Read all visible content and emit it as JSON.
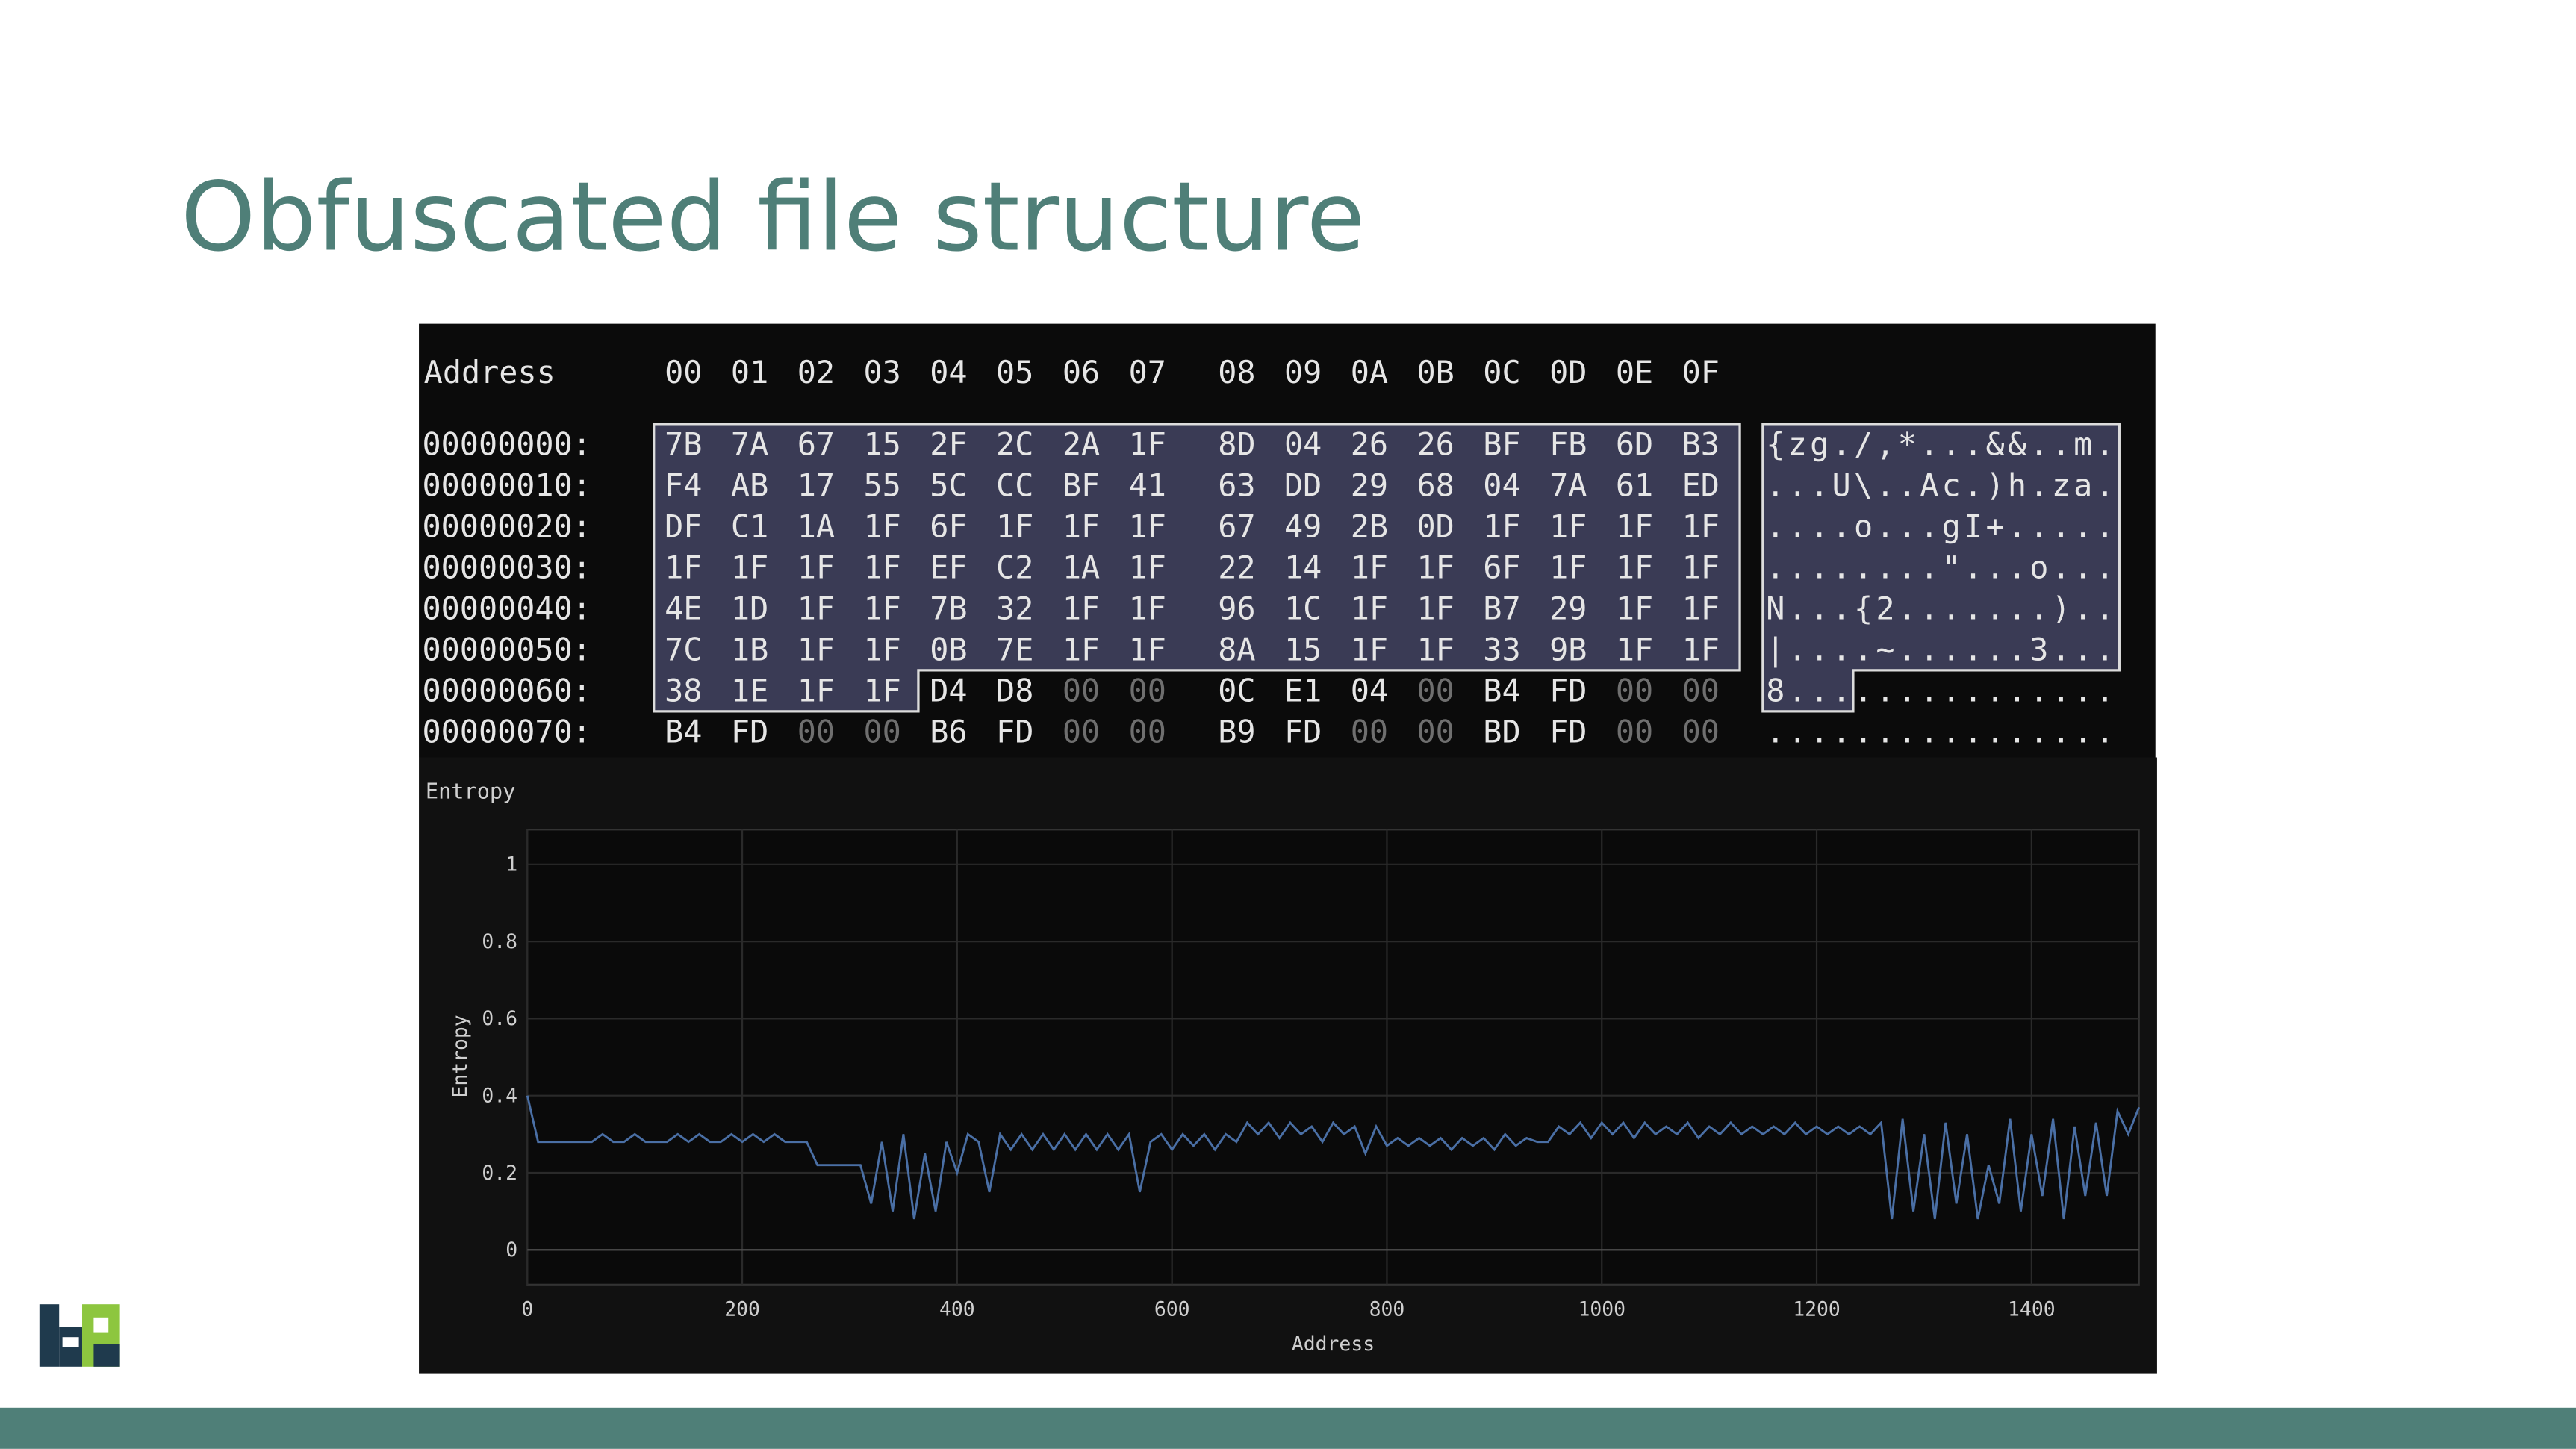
{
  "title": "Obfuscated file structure",
  "hex_view": {
    "header_label": "Address",
    "columns": [
      "00",
      "01",
      "02",
      "03",
      "04",
      "05",
      "06",
      "07",
      "08",
      "09",
      "0A",
      "0B",
      "0C",
      "0D",
      "0E",
      "0F"
    ],
    "rows": [
      {
        "address": "00000000:",
        "bytes": [
          "7B",
          "7A",
          "67",
          "15",
          "2F",
          "2C",
          "2A",
          "1F",
          "8D",
          "04",
          "26",
          "26",
          "BF",
          "FB",
          "6D",
          "B3"
        ],
        "ascii": "{zg./,*...&&..m."
      },
      {
        "address": "00000010:",
        "bytes": [
          "F4",
          "AB",
          "17",
          "55",
          "5C",
          "CC",
          "BF",
          "41",
          "63",
          "DD",
          "29",
          "68",
          "04",
          "7A",
          "61",
          "ED"
        ],
        "ascii": "...U\\..Ac.)h.za."
      },
      {
        "address": "00000020:",
        "bytes": [
          "DF",
          "C1",
          "1A",
          "1F",
          "6F",
          "1F",
          "1F",
          "1F",
          "67",
          "49",
          "2B",
          "0D",
          "1F",
          "1F",
          "1F",
          "1F"
        ],
        "ascii": "....o...gI+....."
      },
      {
        "address": "00000030:",
        "bytes": [
          "1F",
          "1F",
          "1F",
          "1F",
          "EF",
          "C2",
          "1A",
          "1F",
          "22",
          "14",
          "1F",
          "1F",
          "6F",
          "1F",
          "1F",
          "1F"
        ],
        "ascii": "........\"...o..."
      },
      {
        "address": "00000040:",
        "bytes": [
          "4E",
          "1D",
          "1F",
          "1F",
          "7B",
          "32",
          "1F",
          "1F",
          "96",
          "1C",
          "1F",
          "1F",
          "B7",
          "29",
          "1F",
          "1F"
        ],
        "ascii": "N...{2.......).."
      },
      {
        "address": "00000050:",
        "bytes": [
          "7C",
          "1B",
          "1F",
          "1F",
          "0B",
          "7E",
          "1F",
          "1F",
          "8A",
          "15",
          "1F",
          "1F",
          "33",
          "9B",
          "1F",
          "1F"
        ],
        "ascii": "|....~......3..."
      },
      {
        "address": "00000060:",
        "bytes": [
          "38",
          "1E",
          "1F",
          "1F",
          "D4",
          "D8",
          "00",
          "00",
          "0C",
          "E1",
          "04",
          "00",
          "B4",
          "FD",
          "00",
          "00"
        ],
        "ascii": "8..............."
      },
      {
        "address": "00000070:",
        "bytes": [
          "B4",
          "FD",
          "00",
          "00",
          "B6",
          "FD",
          "00",
          "00",
          "B9",
          "FD",
          "00",
          "00",
          "BD",
          "FD",
          "00",
          "00"
        ],
        "ascii": "................"
      }
    ]
  },
  "chart_data": {
    "type": "line",
    "title": "Entropy",
    "x_label": "Address",
    "y_label": "Entropy",
    "color": "#4a6fa5",
    "grid": true,
    "xlim": [
      0,
      1500
    ],
    "ylim": [
      -0.09,
      1.09
    ],
    "xticks": [
      0,
      200,
      400,
      600,
      800,
      1000,
      1200,
      1400
    ],
    "yticks": [
      0,
      0.2,
      0.4,
      0.6,
      0.8,
      1
    ],
    "x": [
      0,
      10,
      20,
      30,
      40,
      50,
      60,
      70,
      80,
      90,
      100,
      110,
      120,
      130,
      140,
      150,
      160,
      170,
      180,
      190,
      200,
      210,
      220,
      230,
      240,
      250,
      260,
      270,
      280,
      290,
      300,
      310,
      320,
      330,
      340,
      350,
      360,
      370,
      380,
      390,
      400,
      410,
      420,
      430,
      440,
      450,
      460,
      470,
      480,
      490,
      500,
      510,
      520,
      530,
      540,
      550,
      560,
      570,
      580,
      590,
      600,
      610,
      620,
      630,
      640,
      650,
      660,
      670,
      680,
      690,
      700,
      710,
      720,
      730,
      740,
      750,
      760,
      770,
      780,
      790,
      800,
      810,
      820,
      830,
      840,
      850,
      860,
      870,
      880,
      890,
      900,
      910,
      920,
      930,
      940,
      950,
      960,
      970,
      980,
      990,
      1000,
      1010,
      1020,
      1030,
      1040,
      1050,
      1060,
      1070,
      1080,
      1090,
      1100,
      1110,
      1120,
      1130,
      1140,
      1150,
      1160,
      1170,
      1180,
      1190,
      1200,
      1210,
      1220,
      1230,
      1240,
      1250,
      1260,
      1270,
      1280,
      1290,
      1300,
      1310,
      1320,
      1330,
      1340,
      1350,
      1360,
      1370,
      1380,
      1390,
      1400,
      1410,
      1420,
      1430,
      1440,
      1450,
      1460,
      1470,
      1480,
      1490,
      1500
    ],
    "values": [
      0.4,
      0.28,
      0.28,
      0.28,
      0.28,
      0.28,
      0.28,
      0.3,
      0.28,
      0.28,
      0.3,
      0.28,
      0.28,
      0.28,
      0.3,
      0.28,
      0.3,
      0.28,
      0.28,
      0.3,
      0.28,
      0.3,
      0.28,
      0.3,
      0.28,
      0.28,
      0.28,
      0.22,
      0.22,
      0.22,
      0.22,
      0.22,
      0.12,
      0.28,
      0.1,
      0.3,
      0.08,
      0.25,
      0.1,
      0.28,
      0.2,
      0.3,
      0.28,
      0.15,
      0.3,
      0.26,
      0.3,
      0.26,
      0.3,
      0.26,
      0.3,
      0.26,
      0.3,
      0.26,
      0.3,
      0.26,
      0.3,
      0.15,
      0.28,
      0.3,
      0.26,
      0.3,
      0.27,
      0.3,
      0.26,
      0.3,
      0.28,
      0.33,
      0.3,
      0.33,
      0.29,
      0.33,
      0.3,
      0.32,
      0.28,
      0.33,
      0.3,
      0.32,
      0.25,
      0.32,
      0.27,
      0.29,
      0.27,
      0.29,
      0.27,
      0.29,
      0.26,
      0.29,
      0.27,
      0.29,
      0.26,
      0.3,
      0.27,
      0.29,
      0.28,
      0.28,
      0.32,
      0.3,
      0.33,
      0.29,
      0.33,
      0.3,
      0.33,
      0.29,
      0.33,
      0.3,
      0.32,
      0.3,
      0.33,
      0.29,
      0.32,
      0.3,
      0.33,
      0.3,
      0.32,
      0.3,
      0.32,
      0.3,
      0.33,
      0.3,
      0.32,
      0.3,
      0.32,
      0.3,
      0.32,
      0.3,
      0.33,
      0.08,
      0.34,
      0.1,
      0.3,
      0.08,
      0.33,
      0.12,
      0.3,
      0.08,
      0.22,
      0.12,
      0.34,
      0.1,
      0.3,
      0.14,
      0.34,
      0.08,
      0.32,
      0.14,
      0.33,
      0.14,
      0.36,
      0.3,
      0.37
    ]
  }
}
